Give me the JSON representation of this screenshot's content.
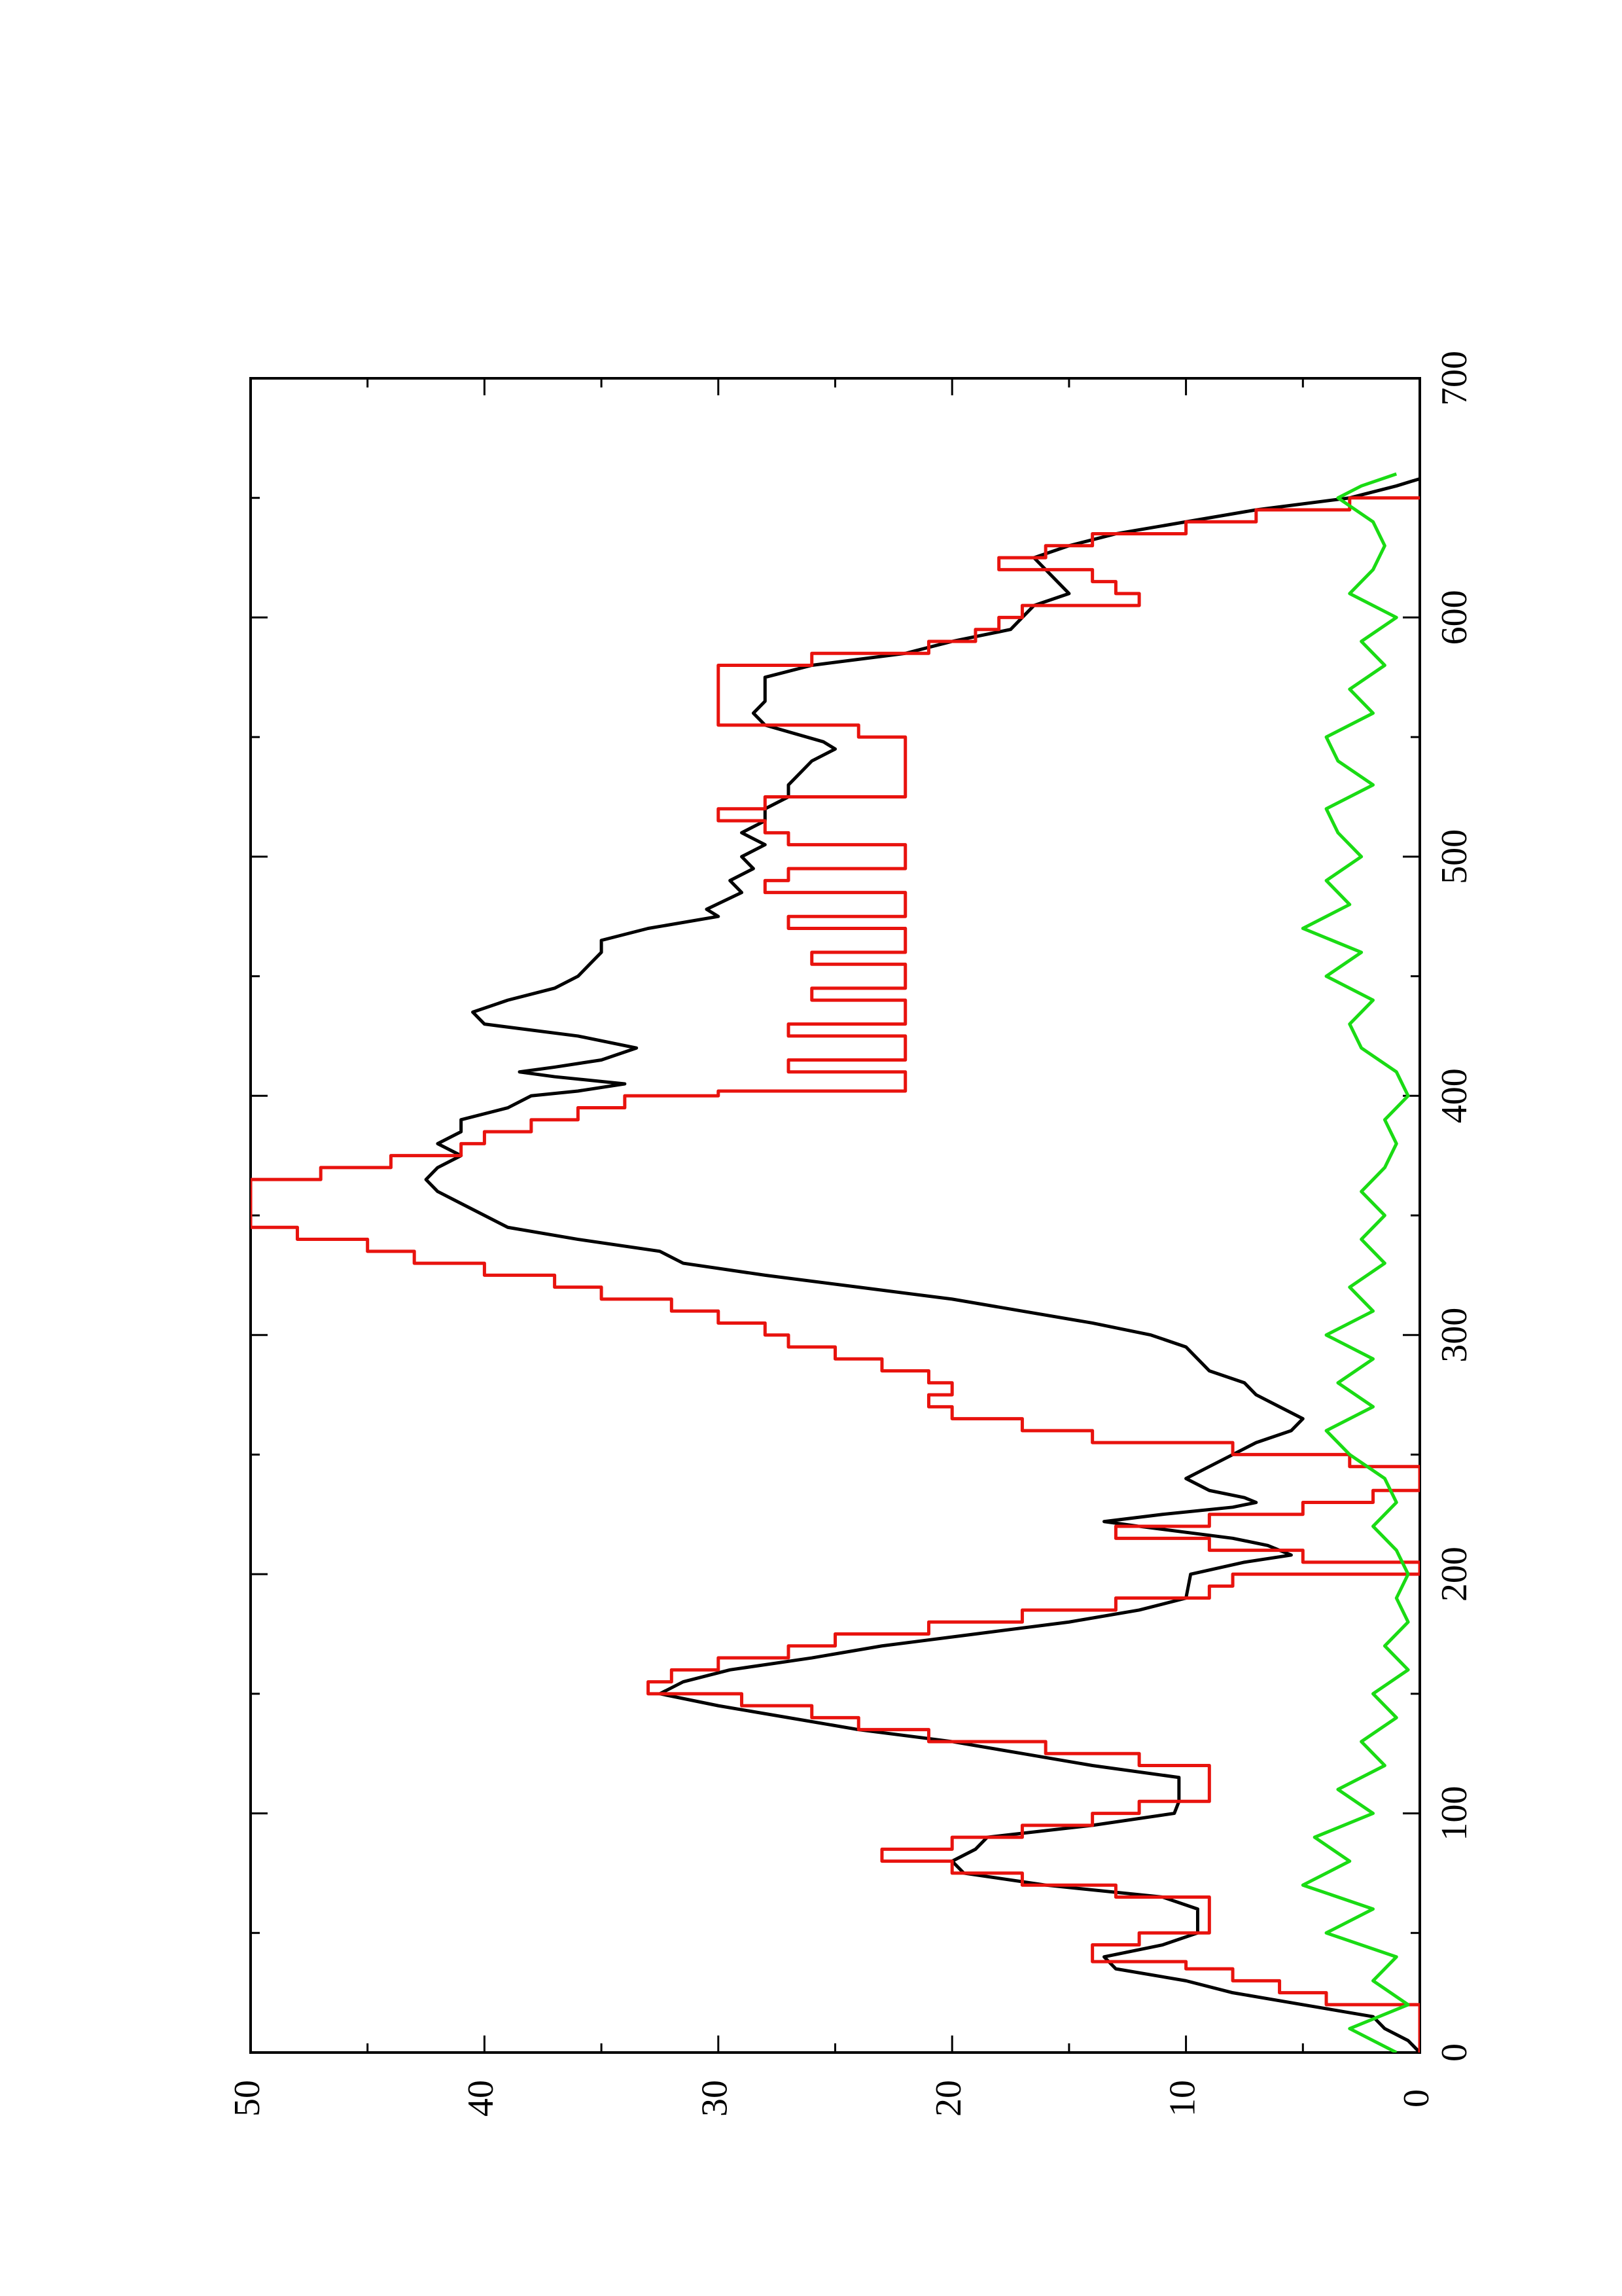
{
  "chart_data": {
    "type": "line",
    "orientation": "rotated-90-ccw",
    "title": "",
    "xlabel": "",
    "ylabel": "",
    "xlim": [
      0,
      700
    ],
    "ylim": [
      0,
      50
    ],
    "x_ticks": [
      0,
      100,
      200,
      300,
      400,
      500,
      600,
      700
    ],
    "y_ticks": [
      0,
      10,
      20,
      30,
      40,
      50
    ],
    "x_tick_labels": [
      "0",
      "100",
      "200",
      "300",
      "400",
      "500",
      "600",
      "700"
    ],
    "y_tick_labels": [
      "0",
      "10",
      "20",
      "30",
      "40",
      "50"
    ],
    "grid": false,
    "legend": "none",
    "series": [
      {
        "color": "#000000",
        "style": "smooth",
        "points": [
          [
            0,
            0
          ],
          [
            5,
            0.5
          ],
          [
            10,
            1.5
          ],
          [
            15,
            2
          ],
          [
            20,
            5
          ],
          [
            25,
            8
          ],
          [
            30,
            10
          ],
          [
            35,
            13
          ],
          [
            40,
            13.5
          ],
          [
            45,
            11
          ],
          [
            50,
            9.5
          ],
          [
            60,
            9.5
          ],
          [
            65,
            11
          ],
          [
            70,
            16
          ],
          [
            75,
            19.5
          ],
          [
            80,
            20
          ],
          [
            85,
            19
          ],
          [
            90,
            18.5
          ],
          [
            95,
            14
          ],
          [
            100,
            10.5
          ],
          [
            105,
            10.3
          ],
          [
            115,
            10.3
          ],
          [
            120,
            14
          ],
          [
            125,
            17
          ],
          [
            130,
            20
          ],
          [
            135,
            24
          ],
          [
            140,
            27
          ],
          [
            145,
            30
          ],
          [
            150,
            32.5
          ],
          [
            155,
            31.5
          ],
          [
            160,
            29.5
          ],
          [
            165,
            26
          ],
          [
            170,
            23
          ],
          [
            175,
            19
          ],
          [
            180,
            15
          ],
          [
            185,
            12
          ],
          [
            190,
            10
          ],
          [
            200,
            9.8
          ],
          [
            205,
            7.5
          ],
          [
            208,
            5.5
          ],
          [
            212,
            6.5
          ],
          [
            215,
            8
          ],
          [
            220,
            12
          ],
          [
            222,
            13.5
          ],
          [
            225,
            11
          ],
          [
            228,
            8
          ],
          [
            230,
            7
          ],
          [
            232,
            7.5
          ],
          [
            235,
            9
          ],
          [
            240,
            10
          ],
          [
            245,
            9
          ],
          [
            250,
            8
          ],
          [
            255,
            7
          ],
          [
            260,
            5.5
          ],
          [
            265,
            5
          ],
          [
            270,
            6
          ],
          [
            275,
            7
          ],
          [
            280,
            7.5
          ],
          [
            285,
            9
          ],
          [
            290,
            9.5
          ],
          [
            295,
            10
          ],
          [
            300,
            11.5
          ],
          [
            305,
            14
          ],
          [
            310,
            17
          ],
          [
            315,
            20
          ],
          [
            320,
            24
          ],
          [
            325,
            28
          ],
          [
            330,
            31.5
          ],
          [
            335,
            32.5
          ],
          [
            340,
            36
          ],
          [
            345,
            39
          ],
          [
            350,
            40
          ],
          [
            355,
            41
          ],
          [
            360,
            42
          ],
          [
            365,
            42.5
          ],
          [
            370,
            42
          ],
          [
            375,
            41
          ],
          [
            380,
            42
          ],
          [
            385,
            41
          ],
          [
            390,
            41
          ],
          [
            395,
            39
          ],
          [
            400,
            38
          ],
          [
            402,
            36
          ],
          [
            405,
            34
          ],
          [
            408,
            37
          ],
          [
            410,
            38.5
          ],
          [
            412,
            37
          ],
          [
            415,
            35
          ],
          [
            420,
            33.5
          ],
          [
            425,
            36
          ],
          [
            430,
            40
          ],
          [
            435,
            40.5
          ],
          [
            440,
            39
          ],
          [
            445,
            37
          ],
          [
            450,
            36
          ],
          [
            455,
            35.5
          ],
          [
            460,
            35
          ],
          [
            465,
            35
          ],
          [
            470,
            33
          ],
          [
            475,
            30
          ],
          [
            478,
            30.5
          ],
          [
            485,
            29
          ],
          [
            490,
            29.5
          ],
          [
            495,
            28.5
          ],
          [
            500,
            29
          ],
          [
            505,
            28
          ],
          [
            510,
            29
          ],
          [
            515,
            28
          ],
          [
            520,
            28
          ],
          [
            525,
            27
          ],
          [
            530,
            27
          ],
          [
            535,
            26.5
          ],
          [
            540,
            26
          ],
          [
            545,
            25
          ],
          [
            548,
            25.5
          ],
          [
            555,
            28
          ],
          [
            560,
            28.5
          ],
          [
            565,
            28
          ],
          [
            575,
            28
          ],
          [
            580,
            26
          ],
          [
            585,
            22
          ],
          [
            590,
            20
          ],
          [
            595,
            17.5
          ],
          [
            600,
            17
          ],
          [
            605,
            16.5
          ],
          [
            610,
            15
          ],
          [
            615,
            15.5
          ],
          [
            620,
            16
          ],
          [
            625,
            16.5
          ],
          [
            630,
            15
          ],
          [
            635,
            13
          ],
          [
            640,
            10
          ],
          [
            645,
            7
          ],
          [
            650,
            3
          ],
          [
            655,
            1
          ],
          [
            658,
            0
          ]
        ]
      },
      {
        "color": "#e8130e",
        "style": "step",
        "points": [
          [
            0,
            0
          ],
          [
            15,
            0
          ],
          [
            20,
            4
          ],
          [
            25,
            6
          ],
          [
            30,
            8
          ],
          [
            35,
            10
          ],
          [
            38,
            14
          ],
          [
            42,
            14
          ],
          [
            45,
            12
          ],
          [
            50,
            9
          ],
          [
            55,
            9
          ],
          [
            60,
            9
          ],
          [
            65,
            13
          ],
          [
            70,
            17
          ],
          [
            75,
            20
          ],
          [
            80,
            23
          ],
          [
            85,
            20
          ],
          [
            90,
            17
          ],
          [
            95,
            14
          ],
          [
            100,
            12
          ],
          [
            105,
            9
          ],
          [
            115,
            9
          ],
          [
            120,
            12
          ],
          [
            125,
            16
          ],
          [
            130,
            21
          ],
          [
            135,
            24
          ],
          [
            140,
            26
          ],
          [
            145,
            29
          ],
          [
            150,
            33
          ],
          [
            155,
            32
          ],
          [
            160,
            30
          ],
          [
            165,
            27
          ],
          [
            170,
            25
          ],
          [
            175,
            21
          ],
          [
            180,
            17
          ],
          [
            185,
            13
          ],
          [
            190,
            9
          ],
          [
            195,
            8
          ],
          [
            200,
            0
          ],
          [
            205,
            5
          ],
          [
            210,
            9
          ],
          [
            215,
            13
          ],
          [
            220,
            9
          ],
          [
            225,
            5
          ],
          [
            230,
            2
          ],
          [
            235,
            0
          ],
          [
            240,
            0
          ],
          [
            245,
            3
          ],
          [
            250,
            8
          ],
          [
            255,
            14
          ],
          [
            260,
            17
          ],
          [
            265,
            20
          ],
          [
            270,
            21
          ],
          [
            275,
            20
          ],
          [
            280,
            21
          ],
          [
            285,
            23
          ],
          [
            290,
            25
          ],
          [
            295,
            27
          ],
          [
            300,
            28
          ],
          [
            305,
            30
          ],
          [
            310,
            32
          ],
          [
            315,
            35
          ],
          [
            320,
            37
          ],
          [
            325,
            40
          ],
          [
            330,
            43
          ],
          [
            335,
            45
          ],
          [
            340,
            48
          ],
          [
            345,
            50
          ],
          [
            350,
            50
          ],
          [
            360,
            50
          ],
          [
            365,
            47
          ],
          [
            370,
            44
          ],
          [
            375,
            41
          ],
          [
            380,
            40
          ],
          [
            385,
            38
          ],
          [
            390,
            36
          ],
          [
            395,
            34
          ],
          [
            400,
            30
          ],
          [
            402,
            22
          ],
          [
            405,
            22
          ],
          [
            410,
            27
          ],
          [
            415,
            22
          ],
          [
            420,
            22
          ],
          [
            425,
            27
          ],
          [
            430,
            22
          ],
          [
            435,
            22
          ],
          [
            440,
            26
          ],
          [
            445,
            22
          ],
          [
            450,
            22
          ],
          [
            455,
            26
          ],
          [
            460,
            22
          ],
          [
            465,
            22
          ],
          [
            470,
            27
          ],
          [
            475,
            22
          ],
          [
            480,
            22
          ],
          [
            485,
            28
          ],
          [
            490,
            27
          ],
          [
            495,
            22
          ],
          [
            500,
            22
          ],
          [
            505,
            27
          ],
          [
            510,
            28
          ],
          [
            515,
            30
          ],
          [
            520,
            28
          ],
          [
            525,
            22
          ],
          [
            530,
            22
          ],
          [
            545,
            22
          ],
          [
            550,
            24
          ],
          [
            555,
            30
          ],
          [
            575,
            30
          ],
          [
            580,
            26
          ],
          [
            585,
            21
          ],
          [
            590,
            19
          ],
          [
            595,
            18
          ],
          [
            600,
            17
          ],
          [
            605,
            12
          ],
          [
            610,
            13
          ],
          [
            615,
            14
          ],
          [
            620,
            18
          ],
          [
            625,
            16
          ],
          [
            630,
            14
          ],
          [
            635,
            10
          ],
          [
            640,
            7
          ],
          [
            645,
            3
          ],
          [
            650,
            0
          ]
        ]
      },
      {
        "color": "#1adb14",
        "style": "noise",
        "points": [
          [
            0,
            1
          ],
          [
            10,
            3
          ],
          [
            20,
            0.5
          ],
          [
            30,
            2
          ],
          [
            40,
            1
          ],
          [
            50,
            4
          ],
          [
            60,
            2
          ],
          [
            70,
            5
          ],
          [
            80,
            3
          ],
          [
            90,
            4.5
          ],
          [
            100,
            2
          ],
          [
            110,
            3.5
          ],
          [
            120,
            1.5
          ],
          [
            130,
            2.5
          ],
          [
            140,
            1
          ],
          [
            150,
            2
          ],
          [
            160,
            0.5
          ],
          [
            170,
            1.5
          ],
          [
            180,
            0.5
          ],
          [
            190,
            1
          ],
          [
            200,
            0.5
          ],
          [
            210,
            1
          ],
          [
            220,
            2
          ],
          [
            230,
            1
          ],
          [
            240,
            1.5
          ],
          [
            250,
            3
          ],
          [
            260,
            4
          ],
          [
            270,
            2
          ],
          [
            280,
            3.5
          ],
          [
            290,
            2
          ],
          [
            300,
            4
          ],
          [
            310,
            2
          ],
          [
            320,
            3
          ],
          [
            330,
            1.5
          ],
          [
            340,
            2.5
          ],
          [
            350,
            1.5
          ],
          [
            360,
            2.5
          ],
          [
            370,
            1.5
          ],
          [
            380,
            1
          ],
          [
            390,
            1.5
          ],
          [
            400,
            0.5
          ],
          [
            410,
            1
          ],
          [
            420,
            2.5
          ],
          [
            430,
            3
          ],
          [
            440,
            2
          ],
          [
            450,
            4
          ],
          [
            460,
            2.5
          ],
          [
            470,
            5
          ],
          [
            480,
            3
          ],
          [
            490,
            4
          ],
          [
            500,
            2.5
          ],
          [
            510,
            3.5
          ],
          [
            520,
            4
          ],
          [
            530,
            2
          ],
          [
            540,
            3.5
          ],
          [
            550,
            4
          ],
          [
            560,
            2
          ],
          [
            570,
            3
          ],
          [
            580,
            1.5
          ],
          [
            590,
            2.5
          ],
          [
            600,
            1
          ],
          [
            610,
            3
          ],
          [
            620,
            2
          ],
          [
            630,
            1.5
          ],
          [
            640,
            2
          ],
          [
            650,
            3.5
          ],
          [
            655,
            2.5
          ],
          [
            660,
            1
          ]
        ]
      }
    ]
  }
}
